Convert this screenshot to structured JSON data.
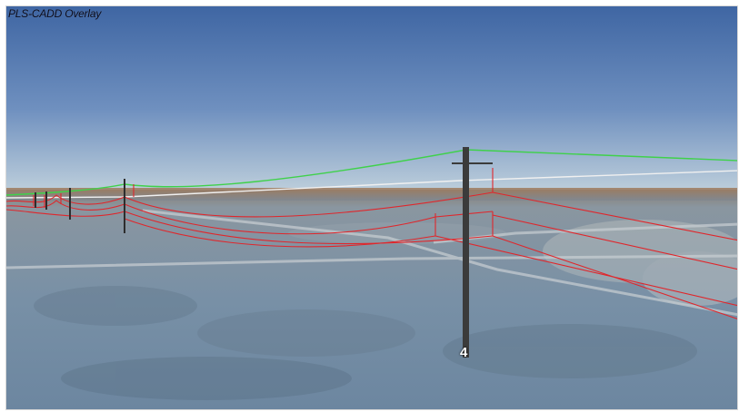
{
  "overlay": {
    "title": "PLS-CADD Overlay"
  },
  "structures": [
    {
      "label": "4"
    }
  ],
  "colors": {
    "sky_top": "#4a6fa8",
    "sky_horizon": "#b6c8d8",
    "ground": "#7d93a6",
    "shield_wire": "#3fd14a",
    "phase_conductors": "#e0262b",
    "reference_line": "#f2f2f2",
    "pole": "#3a3a3a"
  },
  "icons": []
}
